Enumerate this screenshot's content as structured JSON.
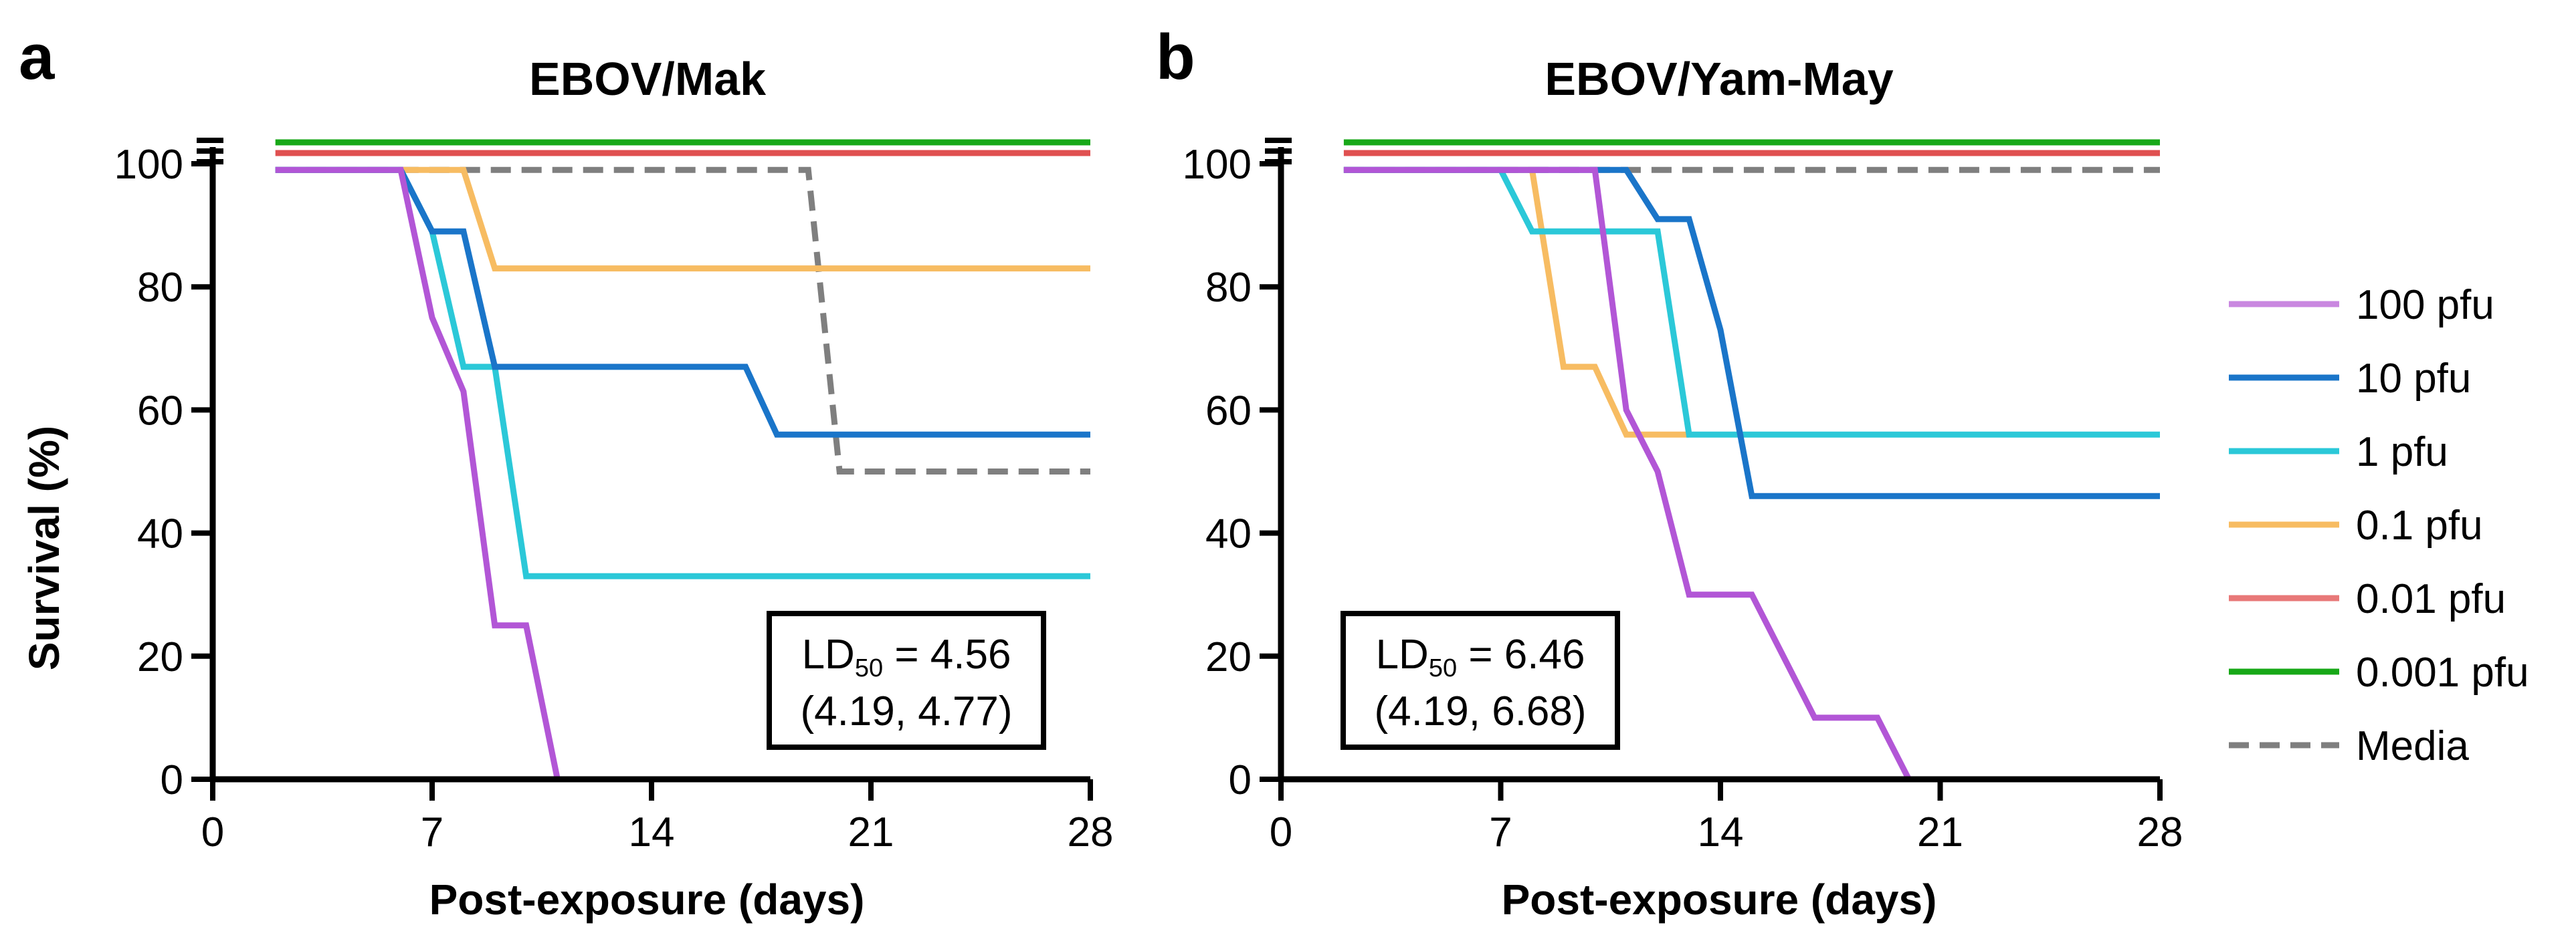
{
  "figure": {
    "legend": [
      {
        "label": "100 pfu",
        "color": "#c987e0",
        "dash": false
      },
      {
        "label": "10 pfu",
        "color": "#1a75c9",
        "dash": false
      },
      {
        "label": "1 pfu",
        "color": "#2bc8d8",
        "dash": false
      },
      {
        "label": "0.1 pfu",
        "color": "#f7bc62",
        "dash": false
      },
      {
        "label": "0.01 pfu",
        "color": "#e87878",
        "dash": false
      },
      {
        "label": "0.001 pfu",
        "color": "#18a818",
        "dash": false
      },
      {
        "label": "Media",
        "color": "#7f7f7f",
        "dash": true
      }
    ]
  },
  "chart_data": [
    {
      "type": "line",
      "step": true,
      "panel_label": "a",
      "title": "EBOV/Mak",
      "xlabel": "Post-exposure (days)",
      "ylabel": "Survival (%)",
      "xlim": [
        0,
        28
      ],
      "ylim": [
        0,
        100
      ],
      "xticks": [
        "0",
        "7",
        "14",
        "21",
        "28"
      ],
      "yticks": [
        "0",
        "20",
        "40",
        "60",
        "80",
        "100"
      ],
      "annotation": {
        "ld_prefix": "LD",
        "ld_sub": "50",
        "ld_value": " = 4.56",
        "ci": "(4.19, 4.77)"
      },
      "series": [
        {
          "name": "0.001 pfu",
          "color": "#18a818",
          "offset": 2,
          "points": [
            [
              2,
              100
            ],
            [
              28,
              100
            ]
          ]
        },
        {
          "name": "0.01 pfu",
          "color": "#e05050",
          "offset": 1,
          "points": [
            [
              2,
              100
            ],
            [
              28,
              100
            ]
          ]
        },
        {
          "name": "Media",
          "color": "#7f7f7f",
          "dash": true,
          "points": [
            [
              2,
              99
            ],
            [
              19,
              99
            ],
            [
              20,
              50
            ],
            [
              28,
              50
            ]
          ]
        },
        {
          "name": "0.1 pfu",
          "color": "#f7bc62",
          "points": [
            [
              2,
              99
            ],
            [
              8,
              99
            ],
            [
              9,
              83
            ],
            [
              28,
              83
            ]
          ]
        },
        {
          "name": "1 pfu",
          "color": "#2bc8d8",
          "points": [
            [
              2,
              99
            ],
            [
              6,
              99
            ],
            [
              7,
              89
            ],
            [
              8,
              67
            ],
            [
              9,
              67
            ],
            [
              10,
              33
            ],
            [
              28,
              33
            ]
          ]
        },
        {
          "name": "10 pfu",
          "color": "#1a75c9",
          "points": [
            [
              2,
              99
            ],
            [
              6,
              99
            ],
            [
              7,
              89
            ],
            [
              8,
              89
            ],
            [
              9,
              67
            ],
            [
              17,
              67
            ],
            [
              18,
              56
            ],
            [
              28,
              56
            ]
          ]
        },
        {
          "name": "100 pfu",
          "color": "#b256d6",
          "points": [
            [
              2,
              99
            ],
            [
              6,
              99
            ],
            [
              7,
              75
            ],
            [
              8,
              63
            ],
            [
              9,
              25
            ],
            [
              10,
              25
            ],
            [
              11,
              0
            ],
            [
              28,
              0
            ]
          ]
        }
      ]
    },
    {
      "type": "line",
      "step": true,
      "panel_label": "b",
      "title": "EBOV/Yam-May",
      "xlabel": "Post-exposure (days)",
      "ylabel": "",
      "xlim": [
        0,
        28
      ],
      "ylim": [
        0,
        100
      ],
      "xticks": [
        "0",
        "7",
        "14",
        "21",
        "28"
      ],
      "yticks": [
        "0",
        "20",
        "40",
        "60",
        "80",
        "100"
      ],
      "annotation": {
        "ld_prefix": "LD",
        "ld_sub": "50",
        "ld_value": " = 6.46",
        "ci": "(4.19, 6.68)"
      },
      "series": [
        {
          "name": "0.001 pfu",
          "color": "#18a818",
          "offset": 2,
          "points": [
            [
              2,
              100
            ],
            [
              28,
              100
            ]
          ]
        },
        {
          "name": "0.01 pfu",
          "color": "#e05050",
          "offset": 1,
          "points": [
            [
              2,
              100
            ],
            [
              28,
              100
            ]
          ]
        },
        {
          "name": "Media",
          "color": "#7f7f7f",
          "dash": true,
          "points": [
            [
              2,
              99
            ],
            [
              28,
              99
            ]
          ]
        },
        {
          "name": "0.1 pfu",
          "color": "#f7bc62",
          "points": [
            [
              2,
              99
            ],
            [
              8,
              99
            ],
            [
              9,
              67
            ],
            [
              10,
              67
            ],
            [
              11,
              56
            ],
            [
              13,
              56
            ]
          ]
        },
        {
          "name": "1 pfu",
          "color": "#2bc8d8",
          "points": [
            [
              2,
              99
            ],
            [
              7,
              99
            ],
            [
              8,
              89
            ],
            [
              12,
              89
            ],
            [
              13,
              56
            ],
            [
              28,
              56
            ]
          ]
        },
        {
          "name": "10 pfu",
          "color": "#1a75c9",
          "points": [
            [
              2,
              99
            ],
            [
              11,
              99
            ],
            [
              12,
              91
            ],
            [
              13,
              91
            ],
            [
              14,
              73
            ],
            [
              15,
              46
            ],
            [
              28,
              46
            ]
          ]
        },
        {
          "name": "100 pfu",
          "color": "#b256d6",
          "points": [
            [
              2,
              99
            ],
            [
              10,
              99
            ],
            [
              11,
              60
            ],
            [
              12,
              50
            ],
            [
              13,
              30
            ],
            [
              15,
              30
            ],
            [
              16,
              20
            ],
            [
              17,
              10
            ],
            [
              19,
              10
            ],
            [
              20,
              0
            ],
            [
              28,
              0
            ]
          ]
        }
      ]
    }
  ]
}
